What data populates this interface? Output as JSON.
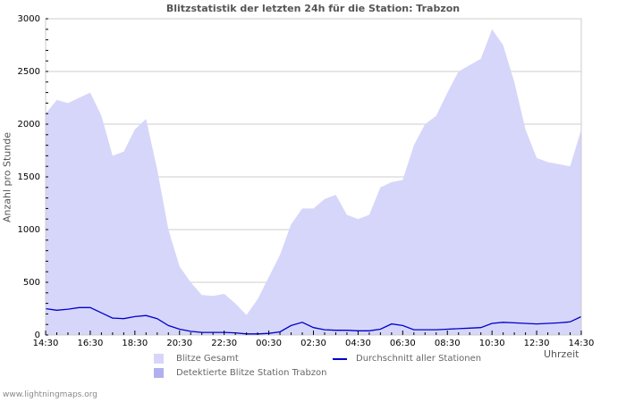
{
  "title": "Blitzstatistik der letzten 24h für die Station: Trabzon",
  "footer": "www.lightningmaps.org",
  "colors": {
    "total_fill": "#d6d6fa",
    "detected_fill": "#b0b0f0",
    "average_line": "#0000cc",
    "grid": "#cccccc"
  },
  "legend": {
    "total": "Blitze Gesamt",
    "detected": "Detektierte Blitze Station Trabzon",
    "average": "Durchschnitt aller Stationen"
  },
  "chart_data": {
    "type": "area",
    "title": "Blitzstatistik der letzten 24h für die Station: Trabzon",
    "xlabel": "Uhrzeit",
    "ylabel": "Anzahl pro Stunde",
    "ylim": [
      0,
      3000
    ],
    "yticks": [
      0,
      500,
      1000,
      1500,
      2000,
      2500,
      3000
    ],
    "xtick_labels": [
      "14:30",
      "16:30",
      "18:30",
      "20:30",
      "22:30",
      "00:30",
      "02:30",
      "04:30",
      "06:30",
      "08:30",
      "10:30",
      "12:30",
      "14:30"
    ],
    "grid": true,
    "legend_position": "bottom",
    "x": [
      "14:30",
      "15:00",
      "15:30",
      "16:00",
      "16:30",
      "17:00",
      "17:30",
      "18:00",
      "18:30",
      "19:00",
      "19:30",
      "20:00",
      "20:30",
      "21:00",
      "21:30",
      "22:00",
      "22:30",
      "23:00",
      "23:30",
      "00:00",
      "00:30",
      "01:00",
      "01:30",
      "02:00",
      "02:30",
      "03:00",
      "03:30",
      "04:00",
      "04:30",
      "05:00",
      "05:30",
      "06:00",
      "06:30",
      "07:00",
      "07:30",
      "08:00",
      "08:30",
      "09:00",
      "09:30",
      "10:00",
      "10:30",
      "11:00",
      "11:30",
      "12:00",
      "12:30",
      "13:00",
      "13:30",
      "14:00",
      "14:30"
    ],
    "series": [
      {
        "name": "Blitze Gesamt",
        "type": "area",
        "values": [
          2100,
          2230,
          2200,
          2250,
          2300,
          2080,
          1700,
          1740,
          1950,
          2050,
          1570,
          1000,
          650,
          500,
          380,
          370,
          390,
          300,
          190,
          340,
          550,
          760,
          1050,
          1200,
          1200,
          1290,
          1330,
          1140,
          1100,
          1140,
          1400,
          1450,
          1470,
          1800,
          2000,
          2080,
          2300,
          2500,
          2560,
          2620,
          2900,
          2750,
          2400,
          1950,
          1680,
          1640,
          1620,
          1600,
          1950
        ]
      },
      {
        "name": "Detektierte Blitze Station Trabzon",
        "type": "area",
        "values": [
          0,
          0,
          0,
          0,
          0,
          0,
          0,
          0,
          0,
          0,
          0,
          0,
          0,
          0,
          0,
          0,
          0,
          0,
          0,
          0,
          0,
          0,
          0,
          0,
          0,
          0,
          0,
          0,
          0,
          0,
          0,
          0,
          0,
          0,
          0,
          0,
          0,
          0,
          0,
          0,
          0,
          0,
          0,
          0,
          0,
          0,
          0,
          0,
          0
        ]
      },
      {
        "name": "Durchschnitt aller Stationen",
        "type": "line",
        "values": [
          250,
          235,
          245,
          260,
          260,
          210,
          160,
          155,
          175,
          185,
          155,
          90,
          55,
          35,
          25,
          25,
          25,
          20,
          10,
          10,
          15,
          30,
          90,
          120,
          70,
          50,
          45,
          45,
          40,
          40,
          55,
          105,
          90,
          50,
          50,
          50,
          55,
          60,
          65,
          70,
          110,
          120,
          115,
          110,
          105,
          110,
          115,
          125,
          175
        ]
      }
    ]
  }
}
